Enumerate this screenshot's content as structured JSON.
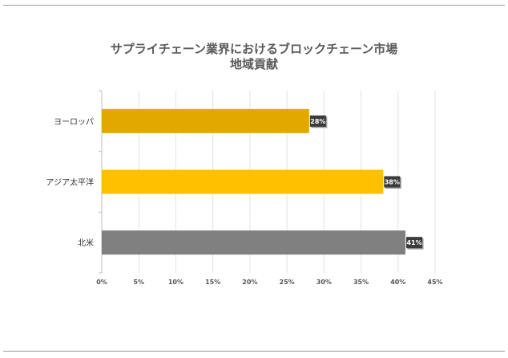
{
  "chart_data": {
    "type": "bar",
    "orientation": "horizontal",
    "title_lines": [
      "サプライチェーン業界におけるブロックチェーン市場",
      "地域貢献"
    ],
    "categories": [
      "ヨーロッパ",
      "アジア太平洋",
      "北米"
    ],
    "values": [
      28,
      38,
      41
    ],
    "value_labels": [
      "28%",
      "38%",
      "41%"
    ],
    "bar_colors": [
      "#E3A800",
      "#FFC000",
      "#808080"
    ],
    "x_ticks": [
      0,
      5,
      10,
      15,
      20,
      25,
      30,
      35,
      40,
      45
    ],
    "x_tick_labels": [
      "0%",
      "5%",
      "10%",
      "15%",
      "20%",
      "25%",
      "30%",
      "35%",
      "40%",
      "45%"
    ],
    "xlim": [
      0,
      45
    ],
    "grid": "vertical",
    "legend": "none"
  }
}
